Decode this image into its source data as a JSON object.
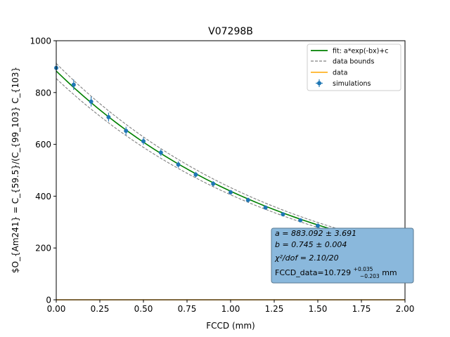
{
  "chart_data": {
    "type": "scatter",
    "title": "V07298B",
    "xlabel": "FCCD (mm)",
    "ylabel": "$O_{Am241} = C_{59.5}/(C_{99_103} C_{103}",
    "xlim": [
      0,
      2
    ],
    "ylim": [
      0,
      1000
    ],
    "xticks": [
      "0.00",
      "0.25",
      "0.50",
      "0.75",
      "1.00",
      "1.25",
      "1.50",
      "1.75",
      "2.00"
    ],
    "yticks": [
      "0",
      "200",
      "400",
      "600",
      "800",
      "1000"
    ],
    "grid": false,
    "legend_position": "upper-right",
    "legend": {
      "fit": "fit: a*exp(-bx)+c",
      "bounds": "data bounds",
      "data": "data",
      "sim": "simulations"
    },
    "fit_params": {
      "a": 883.092,
      "b": 0.745,
      "c": 0
    },
    "fit_bounds": {
      "upper_scale": 1.033,
      "lower_scale": 0.967
    },
    "data_level": 0,
    "series": [
      {
        "name": "simulations",
        "x": [
          0.0,
          0.1,
          0.2,
          0.3,
          0.4,
          0.5,
          0.6,
          0.7,
          0.8,
          0.9,
          1.0,
          1.1,
          1.2,
          1.3,
          1.4,
          1.5,
          1.6,
          1.7,
          1.8,
          1.9,
          2.0
        ],
        "y": [
          895,
          830,
          765,
          705,
          652,
          612,
          568,
          522,
          483,
          448,
          415,
          385,
          356,
          330,
          307,
          286,
          266,
          248,
          230,
          215,
          203
        ],
        "yerr": [
          22,
          20,
          19,
          17,
          16,
          14,
          13,
          12,
          11,
          10,
          9,
          9,
          8,
          7,
          7,
          6,
          6,
          6,
          5,
          5,
          5
        ]
      }
    ],
    "annotation": {
      "line1": "a = 883.092 ± 3.691",
      "line2": "b = 0.745 ± 0.004",
      "line3": "χ²/dof = 2.10/20",
      "line4_prefix": "FCCD_data=10.729",
      "line4_sup": "+0.035",
      "line4_sub": "−0.203",
      "line4_unit": " mm"
    },
    "colors": {
      "fit": "#008000",
      "bounds": "#808080",
      "data": "#ffa500",
      "points": "#1f77b4",
      "annotation_bg": "#8ab8dc"
    }
  }
}
